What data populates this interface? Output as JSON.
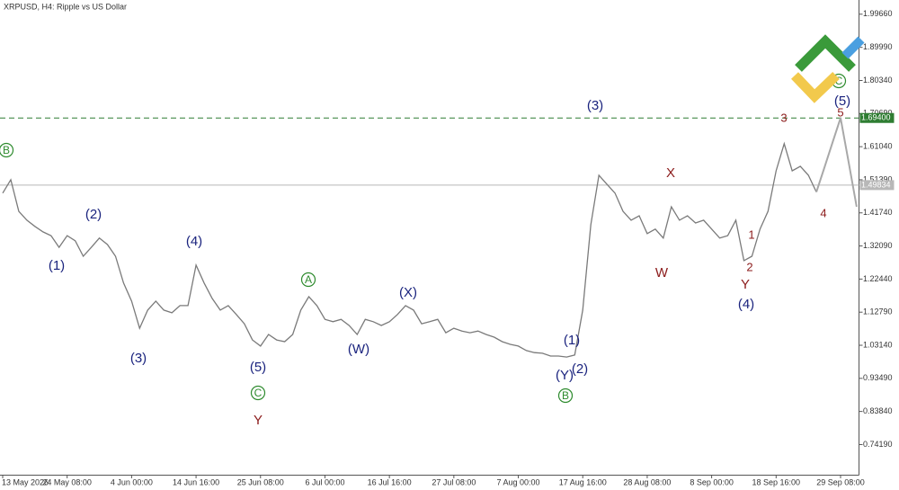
{
  "chart_data": {
    "type": "line",
    "title": "XRPUSD, H4:  Ripple vs US Dollar",
    "categories": [
      "13 May 2026",
      null,
      null,
      null,
      null,
      null,
      null,
      null,
      "24 May 08:00",
      null,
      null,
      null,
      null,
      null,
      null,
      null,
      "4 Jun 00:00",
      null,
      null,
      null,
      null,
      null,
      null,
      null,
      "14 Jun 16:00",
      null,
      null,
      null,
      null,
      null,
      null,
      null,
      "25 Jun 08:00",
      null,
      null,
      null,
      null,
      null,
      null,
      null,
      "6 Jul 00:00",
      null,
      null,
      null,
      null,
      null,
      null,
      null,
      "16 Jul 16:00",
      null,
      null,
      null,
      null,
      null,
      null,
      null,
      "27 Jul 08:00",
      null,
      null,
      null,
      null,
      null,
      null,
      null,
      "7 Aug 00:00",
      null,
      null,
      null,
      null,
      null,
      null,
      null,
      "17 Aug 16:00",
      null,
      null,
      null,
      null,
      null,
      null,
      null,
      "28 Aug 08:00",
      null,
      null,
      null,
      null,
      null,
      null,
      null,
      "8 Sep 00:00",
      null,
      null,
      null,
      null,
      null,
      null,
      null,
      "18 Sep 16:00",
      null,
      null,
      null,
      null,
      null,
      null,
      null,
      "29 Sep 08:00",
      null,
      null
    ],
    "series": [
      {
        "color": "#7a7a7a",
        "values": [
          1.475,
          1.514,
          1.422,
          1.396,
          1.378,
          1.362,
          1.351,
          1.317,
          1.351,
          1.336,
          1.291,
          1.317,
          1.344,
          1.325,
          1.291,
          1.213,
          1.16,
          1.081,
          1.134,
          1.16,
          1.134,
          1.126,
          1.147,
          1.147,
          1.265,
          1.213,
          1.168,
          1.134,
          1.147,
          1.121,
          1.094,
          1.047,
          1.029,
          1.063,
          1.047,
          1.042,
          1.063,
          1.134,
          1.173,
          1.147,
          1.107,
          1.1,
          1.107,
          1.089,
          1.063,
          1.107,
          1.1,
          1.089,
          1.1,
          1.121,
          1.147,
          1.134,
          1.094,
          1.1,
          1.107,
          1.068,
          1.081,
          1.073,
          1.068,
          1.073,
          1.063,
          1.055,
          1.042,
          1.034,
          1.029,
          1.016,
          1.01,
          1.008,
          1.0,
          1.0,
          0.997,
          1.003,
          1.134,
          1.383,
          1.527,
          1.501,
          1.475,
          1.422,
          1.396,
          1.409,
          1.357,
          1.37,
          1.344,
          1.435,
          1.396,
          1.409,
          1.388,
          1.396,
          1.37,
          1.344,
          1.351,
          1.396,
          1.278,
          1.291,
          1.37,
          1.422,
          1.54,
          1.619,
          1.54,
          1.553,
          1.527,
          1.478,
          null,
          null,
          null,
          null,
          null
        ]
      },
      {
        "color": "#a8a8a8",
        "values": [
          null,
          null,
          null,
          null,
          null,
          null,
          null,
          null,
          null,
          null,
          null,
          null,
          null,
          null,
          null,
          null,
          null,
          null,
          null,
          null,
          null,
          null,
          null,
          null,
          null,
          null,
          null,
          null,
          null,
          null,
          null,
          null,
          null,
          null,
          null,
          null,
          null,
          null,
          null,
          null,
          null,
          null,
          null,
          null,
          null,
          null,
          null,
          null,
          null,
          null,
          null,
          null,
          null,
          null,
          null,
          null,
          null,
          null,
          null,
          null,
          null,
          null,
          null,
          null,
          null,
          null,
          null,
          null,
          null,
          null,
          null,
          null,
          null,
          null,
          null,
          null,
          null,
          null,
          null,
          null,
          null,
          null,
          null,
          null,
          null,
          null,
          null,
          null,
          null,
          null,
          null,
          null,
          null,
          null,
          null,
          null,
          null,
          null,
          null,
          null,
          null,
          1.478,
          1.55,
          1.622,
          1.694,
          1.565,
          1.435
        ]
      }
    ],
    "ylim": [
      0.654,
      2.038
    ],
    "yticks": [
      {
        "value": 0.7419,
        "label": "0.74190"
      },
      {
        "value": 0.8384,
        "label": "0.83840"
      },
      {
        "value": 0.9349,
        "label": "0.93490"
      },
      {
        "value": 1.0314,
        "label": "1.03140"
      },
      {
        "value": 1.1279,
        "label": "1.12790"
      },
      {
        "value": 1.2244,
        "label": "1.22440"
      },
      {
        "value": 1.3209,
        "label": "1.32090"
      },
      {
        "value": 1.4174,
        "label": "1.41740"
      },
      {
        "value": 1.5139,
        "label": "1.51390"
      },
      {
        "value": 1.6104,
        "label": "1.61040"
      },
      {
        "value": 1.7069,
        "label": "1.70690"
      },
      {
        "value": 1.8034,
        "label": "1.80340"
      },
      {
        "value": 1.8999,
        "label": "1.89990"
      },
      {
        "value": 1.9966,
        "label": "1.99660"
      }
    ],
    "grid": false,
    "hlines": [
      {
        "value": 1.694,
        "label": "1.69400",
        "color": "#2e7d32",
        "dashed": true
      },
      {
        "value": 1.49834,
        "label": "1.49834",
        "color": "#b8b8b8",
        "dashed": false
      }
    ],
    "wave_labels": [
      {
        "text": "B",
        "color": "#2e8b2e",
        "circled": true
      },
      {
        "text": "(1)",
        "color": "#1a237e"
      },
      {
        "text": "(2)",
        "color": "#1a237e"
      },
      {
        "text": "(3)",
        "color": "#1a237e"
      },
      {
        "text": "(4)",
        "color": "#1a237e"
      },
      {
        "text": "(5)",
        "color": "#1a237e"
      },
      {
        "text": "C",
        "color": "#2e8b2e",
        "circled": true
      },
      {
        "text": "Y",
        "color": "#8b1a1a"
      },
      {
        "text": "A",
        "color": "#2e8b2e",
        "circled": true
      },
      {
        "text": "(W)",
        "color": "#1a237e"
      },
      {
        "text": "(X)",
        "color": "#1a237e"
      },
      {
        "text": "(1)",
        "color": "#1a237e"
      },
      {
        "text": "(Y)",
        "color": "#1a237e"
      },
      {
        "text": "(2)",
        "color": "#1a237e"
      },
      {
        "text": "B",
        "color": "#2e8b2e",
        "circled": true
      },
      {
        "text": "(3)",
        "color": "#1a237e"
      },
      {
        "text": "X",
        "color": "#8b1a1a"
      },
      {
        "text": "W",
        "color": "#8b1a1a"
      },
      {
        "text": "1",
        "color": "#8b1a1a"
      },
      {
        "text": "2",
        "color": "#8b1a1a"
      },
      {
        "text": "Y",
        "color": "#8b1a1a"
      },
      {
        "text": "(4)",
        "color": "#1a237e"
      },
      {
        "text": "3",
        "color": "#8b1a1a"
      },
      {
        "text": "4",
        "color": "#8b1a1a"
      },
      {
        "text": "5",
        "color": "#8b1a1a"
      },
      {
        "text": "(5)",
        "color": "#1a237e"
      },
      {
        "text": "C",
        "color": "#2e8b2e",
        "circled": true
      }
    ]
  }
}
